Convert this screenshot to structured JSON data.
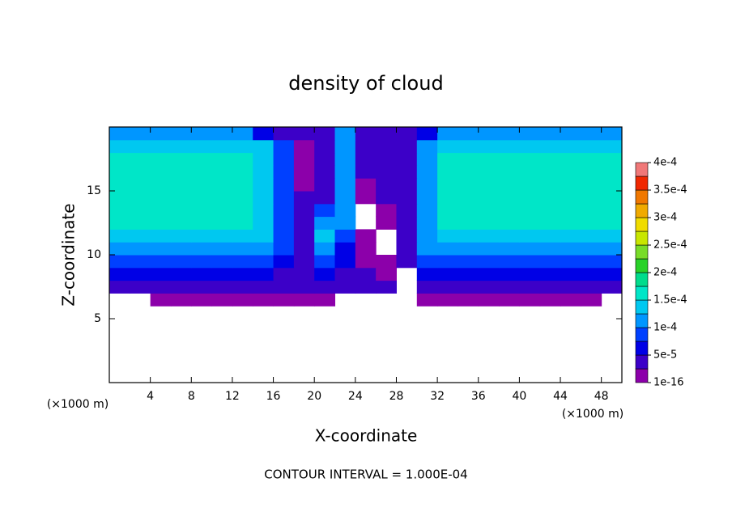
{
  "chart_data": {
    "type": "filled_contour",
    "title": "density of cloud",
    "xlabel": "X-coordinate",
    "ylabel": "Z-coordinate",
    "x_unit_label": "(×1000 m)",
    "y_unit_label": "(×1000 m)",
    "annotation": "CONTOUR INTERVAL = 1.000E-04",
    "xlim": [
      0,
      50
    ],
    "ylim": [
      0,
      20
    ],
    "xticks": [
      4,
      8,
      12,
      16,
      20,
      24,
      28,
      32,
      36,
      40,
      44,
      48
    ],
    "yticks": [
      5,
      10,
      15
    ],
    "x": [
      1,
      3,
      5,
      7,
      9,
      11,
      13,
      15,
      17,
      19,
      21,
      23,
      25,
      27,
      29,
      31,
      33,
      35,
      37,
      39,
      41,
      43,
      45,
      47,
      49
    ],
    "z": [
      0.5,
      1.5,
      2.5,
      3.5,
      4.5,
      5.5,
      6.5,
      7.5,
      8.5,
      9.5,
      10.5,
      11.5,
      12.5,
      13.5,
      14.5,
      15.5,
      16.5,
      17.5,
      18.5,
      19.5
    ],
    "field": [
      [
        0,
        0,
        0,
        0,
        0,
        0,
        0,
        0,
        0,
        0,
        0,
        0,
        0,
        0,
        0,
        0,
        0,
        0,
        0,
        0,
        0,
        0,
        0,
        0,
        0
      ],
      [
        0,
        0,
        0,
        0,
        0,
        0,
        0,
        0,
        0,
        0,
        0,
        0,
        0,
        0,
        0,
        0,
        0,
        0,
        0,
        0,
        0,
        0,
        0,
        0,
        0
      ],
      [
        0,
        0,
        0,
        0,
        0,
        0,
        0,
        0,
        0,
        0,
        0,
        0,
        0,
        0,
        0,
        0,
        0,
        0,
        0,
        0,
        0,
        0,
        0,
        0,
        0
      ],
      [
        0,
        0,
        0,
        0,
        0,
        0,
        0,
        0,
        0,
        0,
        0,
        0,
        0,
        0,
        0,
        0,
        0,
        0,
        0,
        0,
        0,
        0,
        0,
        0,
        0
      ],
      [
        0,
        0,
        0,
        0,
        0,
        0,
        0,
        0,
        0,
        0,
        0,
        0,
        0,
        0,
        0,
        0,
        0,
        0,
        0,
        0,
        0,
        0,
        0,
        0,
        0
      ],
      [
        0,
        0,
        0,
        0,
        0,
        0,
        0,
        0,
        0,
        0,
        0,
        0,
        0,
        0,
        0,
        0,
        0,
        0,
        0,
        0,
        0,
        0,
        0,
        0,
        0
      ],
      [
        0,
        0,
        1e-05,
        1e-05,
        1e-05,
        1e-05,
        1e-05,
        1e-05,
        1e-05,
        1e-05,
        1e-05,
        0,
        0,
        0,
        0,
        1e-05,
        1e-05,
        1e-05,
        1e-05,
        1e-05,
        1e-05,
        1e-05,
        1e-05,
        1e-05,
        0
      ],
      [
        3e-05,
        3e-05,
        3e-05,
        3e-05,
        3e-05,
        3e-05,
        3e-05,
        3e-05,
        3e-05,
        3e-05,
        3e-05,
        3e-05,
        3e-05,
        3e-05,
        0,
        3e-05,
        3e-05,
        3e-05,
        3e-05,
        3e-05,
        3e-05,
        3e-05,
        3e-05,
        3e-05,
        3e-05
      ],
      [
        6e-05,
        6e-05,
        6e-05,
        6e-05,
        6e-05,
        6e-05,
        6e-05,
        6e-05,
        4e-05,
        4e-05,
        5e-05,
        3e-05,
        4e-05,
        1e-05,
        0,
        6e-05,
        6e-05,
        6e-05,
        6e-05,
        6e-05,
        6e-05,
        6e-05,
        6e-05,
        6e-05,
        6e-05
      ],
      [
        9e-05,
        9e-05,
        9e-05,
        9e-05,
        9e-05,
        9e-05,
        9e-05,
        9e-05,
        5e-05,
        4e-05,
        8e-05,
        5e-05,
        1e-05,
        1e-05,
        3e-05,
        9e-05,
        9e-05,
        9e-05,
        9e-05,
        9e-05,
        9e-05,
        9e-05,
        9e-05,
        9e-05,
        9e-05
      ],
      [
        0.00012,
        0.00012,
        0.00012,
        0.00012,
        0.00012,
        0.00012,
        0.00012,
        0.00012,
        8e-05,
        3e-05,
        0.00011,
        6e-05,
        1e-05,
        0,
        4e-05,
        0.0001,
        0.00012,
        0.00012,
        0.00012,
        0.00012,
        0.00012,
        0.00012,
        0.00012,
        0.00012,
        0.00012
      ],
      [
        0.000135,
        0.000135,
        0.000135,
        0.000135,
        0.000135,
        0.000135,
        0.000135,
        0.000135,
        8e-05,
        3e-05,
        0.00013,
        8e-05,
        1e-05,
        0,
        3e-05,
        0.00012,
        0.000135,
        0.000135,
        0.000135,
        0.000135,
        0.000135,
        0.000135,
        0.000135,
        0.000135,
        0.000135
      ],
      [
        0.000155,
        0.000155,
        0.000155,
        0.000155,
        0.000155,
        0.000155,
        0.000155,
        0.00013,
        8e-05,
        3e-05,
        0.00011,
        0.00012,
        0,
        1e-05,
        3e-05,
        0.00012,
        0.000155,
        0.000155,
        0.000155,
        0.000155,
        0.000155,
        0.000155,
        0.000155,
        0.000155,
        0.000155
      ],
      [
        0.000155,
        0.000155,
        0.000155,
        0.000155,
        0.000155,
        0.000155,
        0.000155,
        0.00013,
        8e-05,
        3e-05,
        8e-05,
        0.00012,
        0,
        1e-05,
        3e-05,
        0.00012,
        0.000155,
        0.000155,
        0.000155,
        0.000155,
        0.000155,
        0.000155,
        0.000155,
        0.000155,
        0.000155
      ],
      [
        0.000155,
        0.000155,
        0.000155,
        0.000155,
        0.000155,
        0.000155,
        0.000155,
        0.00013,
        8e-05,
        3e-05,
        3e-05,
        0.00012,
        1e-05,
        3e-05,
        3e-05,
        0.00012,
        0.000155,
        0.000155,
        0.000155,
        0.000155,
        0.000155,
        0.000155,
        0.000155,
        0.000155,
        0.000155
      ],
      [
        0.000155,
        0.000155,
        0.000155,
        0.000155,
        0.000155,
        0.000155,
        0.000155,
        0.00013,
        8e-05,
        1e-05,
        3e-05,
        0.00012,
        1e-05,
        3e-05,
        3e-05,
        0.00012,
        0.000155,
        0.000155,
        0.000155,
        0.000155,
        0.000155,
        0.000155,
        0.000155,
        0.000155,
        0.000155
      ],
      [
        0.000155,
        0.000155,
        0.000155,
        0.000155,
        0.000155,
        0.000155,
        0.000155,
        0.00013,
        8e-05,
        1e-05,
        3e-05,
        0.00012,
        3e-05,
        3e-05,
        3e-05,
        0.00012,
        0.000155,
        0.000155,
        0.000155,
        0.000155,
        0.000155,
        0.000155,
        0.000155,
        0.000155,
        0.000155
      ],
      [
        0.00015,
        0.00015,
        0.00015,
        0.00015,
        0.00015,
        0.00015,
        0.00015,
        0.00013,
        8e-05,
        1e-05,
        3e-05,
        0.00012,
        3e-05,
        3e-05,
        3e-05,
        0.00012,
        0.00015,
        0.00015,
        0.00015,
        0.00015,
        0.00015,
        0.00015,
        0.00015,
        0.00015,
        0.00015
      ],
      [
        0.00014,
        0.00014,
        0.00014,
        0.00014,
        0.00014,
        0.00014,
        0.00014,
        0.00013,
        8e-05,
        1e-05,
        3e-05,
        0.00012,
        3e-05,
        3e-05,
        3e-05,
        0.0001,
        0.00014,
        0.00014,
        0.00014,
        0.00014,
        0.00014,
        0.00014,
        0.00014,
        0.00014,
        0.00014
      ],
      [
        0.00011,
        0.00011,
        0.00011,
        0.00011,
        0.00011,
        0.00011,
        0.00011,
        6e-05,
        4e-05,
        3e-05,
        3e-05,
        0.00012,
        3e-05,
        3e-05,
        3e-05,
        6e-05,
        0.00011,
        0.00011,
        0.00011,
        0.00011,
        0.00011,
        0.00011,
        0.00011,
        0.00011,
        0.00011
      ]
    ],
    "levels": [
      1e-16,
      2.5e-05,
      5e-05,
      7.5e-05,
      0.0001,
      0.000125,
      0.00015,
      0.000175,
      0.0002,
      0.000225,
      0.00025,
      0.000275,
      0.0003,
      0.000325,
      0.00035,
      0.000375,
      0.0004
    ],
    "colors": [
      "#8c00aa",
      "#3c00c8",
      "#0000e6",
      "#0040ff",
      "#0096ff",
      "#00c8f0",
      "#00e6c8",
      "#00dc8c",
      "#28d228",
      "#78dc28",
      "#c8e600",
      "#f0dc00",
      "#f0aa00",
      "#f07800",
      "#f02800",
      "#f07878"
    ],
    "cbar_ticks": [
      {
        "value": 1e-16,
        "label": "1e-16"
      },
      {
        "value": 5e-05,
        "label": "5e-5"
      },
      {
        "value": 0.0001,
        "label": "1e-4"
      },
      {
        "value": 0.00015,
        "label": "1.5e-4"
      },
      {
        "value": 0.0002,
        "label": "2e-4"
      },
      {
        "value": 0.00025,
        "label": "2.5e-4"
      },
      {
        "value": 0.0003,
        "label": "3e-4"
      },
      {
        "value": 0.00035,
        "label": "3.5e-4"
      },
      {
        "value": 0.0004,
        "label": "4e-4"
      }
    ]
  }
}
